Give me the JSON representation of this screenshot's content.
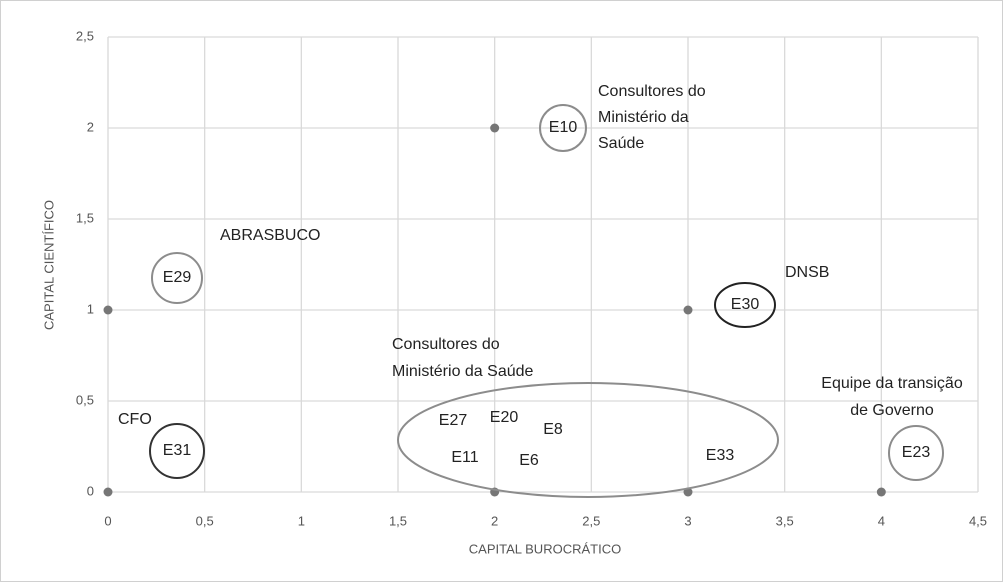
{
  "chart_data": {
    "type": "scatter",
    "x_label": "CAPITAL BUROCRÁTICO",
    "y_label": "CAPITAL CIENTÍFICO",
    "x": [
      0,
      0,
      2,
      3,
      2,
      3,
      4
    ],
    "values": [
      1,
      0,
      2,
      1,
      0,
      0,
      0
    ],
    "color": "#767676",
    "xlim": [
      0,
      4.5
    ],
    "ylim": [
      0,
      2.5
    ],
    "xticks": [
      0,
      {
        "value": 0.5,
        "label": "0,5"
      },
      1,
      {
        "value": 1.5,
        "label": "1,5"
      },
      2,
      {
        "value": 2.5,
        "label": "2,5"
      },
      3,
      {
        "value": 3.5,
        "label": "3,5"
      },
      4,
      {
        "value": 4.5,
        "label": "4,5"
      }
    ],
    "yticks": [
      0,
      {
        "value": 0.5,
        "label": "0,5"
      },
      1,
      {
        "value": 1.5,
        "label": "1,5"
      },
      2,
      {
        "value": 2.5,
        "label": "2,5"
      }
    ],
    "grid": true,
    "annotations": [
      {
        "lines": [
          "Consultores do",
          "Ministério da",
          "Saúde"
        ]
      },
      {
        "lines": [
          "ABRASBUCO"
        ]
      },
      {
        "lines": [
          "DNSB"
        ]
      },
      {
        "lines": [
          "Consultores do",
          "Ministério da Saúde"
        ]
      },
      {
        "lines": [
          "Equipe da transição",
          "de Governo"
        ]
      },
      {
        "lines": [
          "CFO"
        ]
      }
    ],
    "circle_labels": [
      "E10",
      "E29",
      "E30",
      "E31",
      "E23"
    ],
    "group_labels": [
      "E27",
      "E20",
      "E8",
      "E11",
      "E6",
      "E33"
    ]
  }
}
